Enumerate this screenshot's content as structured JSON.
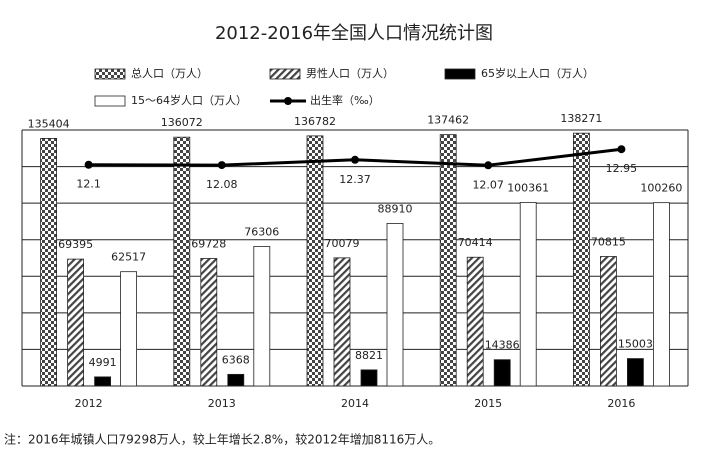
{
  "chart_data": {
    "type": "bar",
    "title": "2012-2016年全国人口情况统计图",
    "categories": [
      "2012",
      "2013",
      "2014",
      "2015",
      "2016"
    ],
    "series": [
      {
        "name": "总人口（万人）",
        "color": "#444444",
        "pattern": "checker",
        "values": [
          135404,
          136072,
          136782,
          137462,
          138271
        ]
      },
      {
        "name": "男性人口（万人）",
        "color": "#444444",
        "pattern": "hatch",
        "values": [
          69395,
          69728,
          70079,
          70414,
          70815
        ]
      },
      {
        "name": "65岁以上人口（万人）",
        "color": "#000000",
        "pattern": "solid",
        "values": [
          4991,
          6368,
          8821,
          14386,
          15003
        ]
      },
      {
        "name": "15～64岁人口（万人）",
        "color": "#ffffff",
        "pattern": "solid",
        "values": [
          62517,
          76306,
          88910,
          100361,
          100260
        ]
      },
      {
        "name": "出生率（‰）",
        "color": "#000000",
        "type": "line",
        "axis": "y2",
        "values": [
          12.1,
          12.08,
          12.37,
          12.07,
          12.95
        ]
      }
    ],
    "ylim": [
      0,
      140000
    ],
    "yticks": [
      0,
      20000,
      40000,
      60000,
      80000,
      100000,
      120000,
      140000
    ],
    "y2lim": [
      0,
      14
    ],
    "grid": true,
    "note": "注：2016年城镇人口79298万人，较上年增长2.8%，较2012年增加8116万人。"
  }
}
